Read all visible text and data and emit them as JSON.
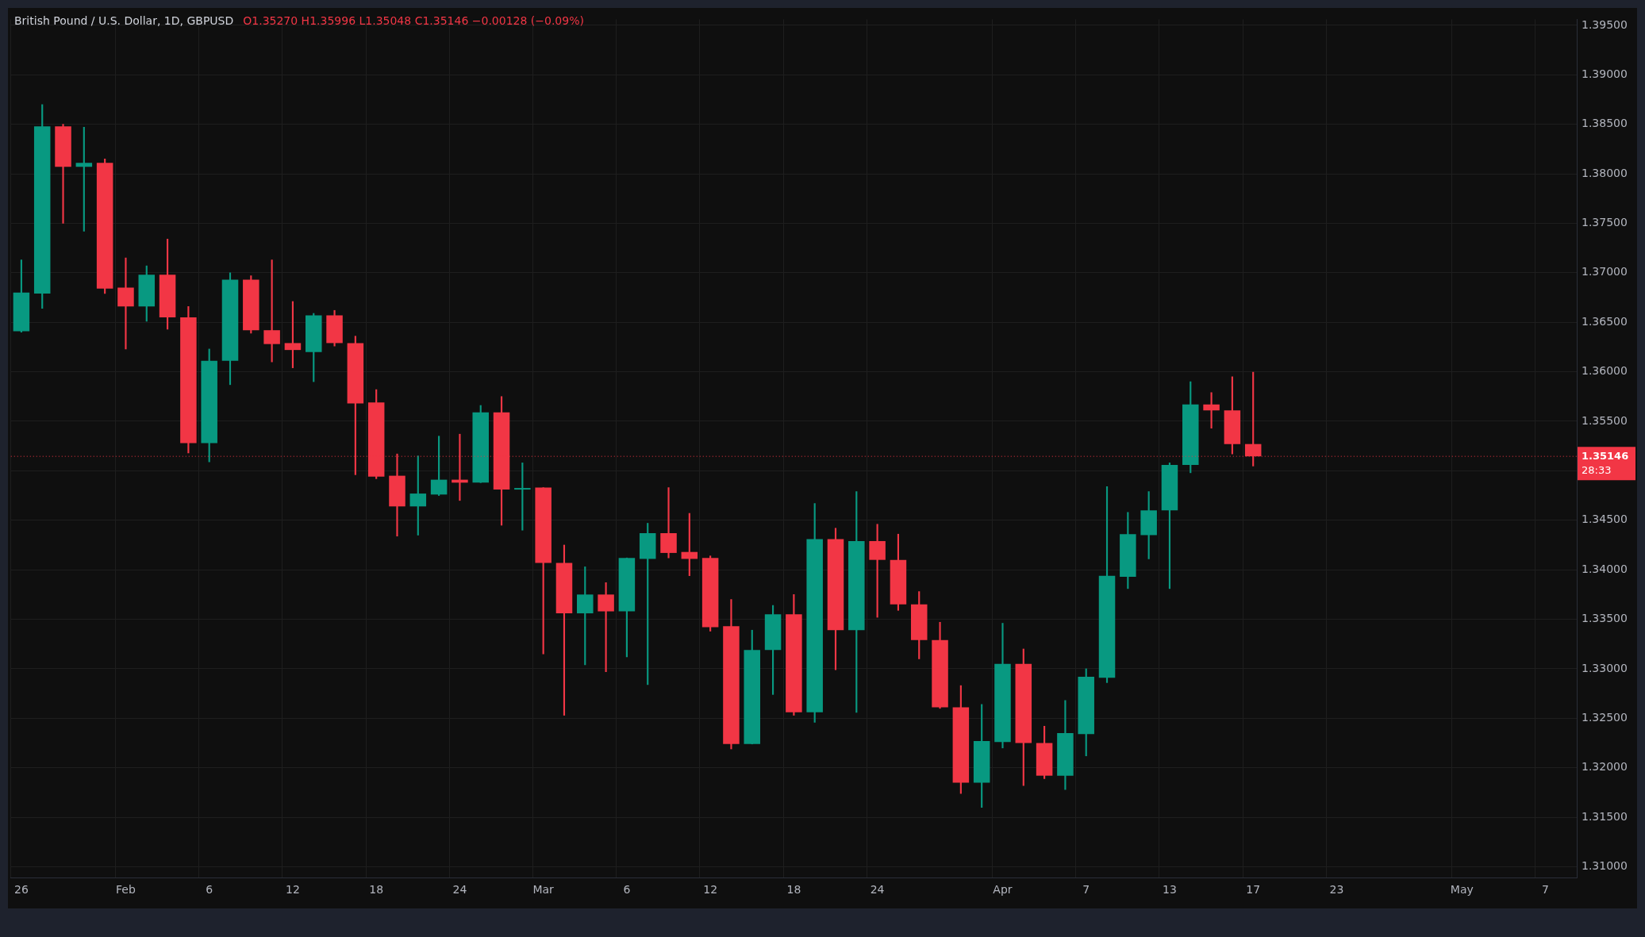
{
  "chart_data": {
    "type": "candlestick",
    "title": "British Pound / U.S. Dollar, 1D, GBPUSD",
    "subtitle": "O1.35270 H1.35996 L1.35048 C1.35146 −0.00128 (−0.09%)",
    "categories": [
      "26",
      null,
      null,
      null,
      null,
      "Feb",
      null,
      null,
      null,
      "6",
      null,
      null,
      null,
      "12",
      null,
      null,
      null,
      "18",
      null,
      null,
      null,
      "24",
      null,
      null,
      null,
      "Mar",
      null,
      null,
      null,
      "6",
      null,
      null,
      null,
      "12",
      null,
      null,
      null,
      "18",
      null,
      null,
      null,
      "24",
      null,
      null,
      null,
      null,
      null,
      "Apr",
      null,
      null,
      null,
      "7",
      null,
      null,
      null,
      "13",
      null,
      null,
      null,
      "17",
      null,
      null,
      null,
      "23",
      null,
      null,
      null,
      null,
      null,
      "May",
      null,
      null,
      null,
      "7",
      null
    ],
    "ohlc": [
      [
        1.3641,
        1.3713,
        1.364,
        1.368
      ],
      [
        1.3679,
        1.387,
        1.3664,
        1.3848
      ],
      [
        1.3848,
        1.385,
        1.375,
        1.3807
      ],
      [
        1.3807,
        1.3847,
        1.3742,
        1.3811
      ],
      [
        1.3811,
        1.3815,
        1.3679,
        1.3684
      ],
      [
        1.3685,
        1.3715,
        1.3623,
        1.3666
      ],
      [
        1.3666,
        1.3707,
        1.3651,
        1.3698
      ],
      [
        1.3698,
        1.3734,
        1.3643,
        1.3655
      ],
      [
        1.3655,
        1.3666,
        1.3518,
        1.3528
      ],
      [
        1.3528,
        1.3623,
        1.3509,
        1.3611
      ],
      [
        1.3611,
        1.37,
        1.3587,
        1.3693
      ],
      [
        1.3693,
        1.3697,
        1.3639,
        1.3642
      ],
      [
        1.3642,
        1.3713,
        1.361,
        1.3628
      ],
      [
        1.3629,
        1.3671,
        1.3604,
        1.3622
      ],
      [
        1.362,
        1.3659,
        1.359,
        1.3657
      ],
      [
        1.3657,
        1.3662,
        1.3626,
        1.3629
      ],
      [
        1.3629,
        1.3636,
        1.3496,
        1.3568
      ],
      [
        1.3569,
        1.3582,
        1.3492,
        1.3494
      ],
      [
        1.3495,
        1.3517,
        1.3434,
        1.3464
      ],
      [
        1.3464,
        1.3515,
        1.3435,
        1.3477
      ],
      [
        1.3476,
        1.3535,
        1.3475,
        1.3491
      ],
      [
        1.3491,
        1.3537,
        1.347,
        1.3488
      ],
      [
        1.3488,
        1.3566,
        1.3488,
        1.3559
      ],
      [
        1.3559,
        1.3575,
        1.3445,
        1.3481
      ],
      [
        1.3481,
        1.3508,
        1.344,
        1.3482
      ],
      [
        1.3483,
        1.3483,
        1.3315,
        1.3407
      ],
      [
        1.3407,
        1.3425,
        1.3253,
        1.3356
      ],
      [
        1.3356,
        1.3403,
        1.3304,
        1.3375
      ],
      [
        1.3375,
        1.3387,
        1.3297,
        1.3358
      ],
      [
        1.3358,
        1.3412,
        1.3312,
        1.3412
      ],
      [
        1.3411,
        1.3447,
        1.3284,
        1.3437
      ],
      [
        1.3437,
        1.3483,
        1.3412,
        1.3417
      ],
      [
        1.3418,
        1.3457,
        1.3394,
        1.3411
      ],
      [
        1.3412,
        1.3414,
        1.3338,
        1.3342
      ],
      [
        1.3343,
        1.337,
        1.3219,
        1.3224
      ],
      [
        1.3224,
        1.3339,
        1.3224,
        1.3319
      ],
      [
        1.3319,
        1.3364,
        1.3274,
        1.3355
      ],
      [
        1.3355,
        1.3375,
        1.3253,
        1.3256
      ],
      [
        1.3256,
        1.3467,
        1.3246,
        1.3431
      ],
      [
        1.3431,
        1.3442,
        1.3299,
        1.3339
      ],
      [
        1.3339,
        1.3479,
        1.3256,
        1.3429
      ],
      [
        1.3429,
        1.3446,
        1.3352,
        1.341
      ],
      [
        1.341,
        1.3436,
        1.3359,
        1.3365
      ],
      [
        1.3365,
        1.3378,
        1.331,
        1.3329
      ],
      [
        1.3329,
        1.3347,
        1.326,
        1.3261
      ],
      [
        1.3261,
        1.3283,
        1.3174,
        1.3185
      ],
      [
        1.3185,
        1.3264,
        1.316,
        1.3227
      ],
      [
        1.3226,
        1.3346,
        1.322,
        1.3305
      ],
      [
        1.3305,
        1.332,
        1.3182,
        1.3225
      ],
      [
        1.3225,
        1.3242,
        1.3189,
        1.3192
      ],
      [
        1.3192,
        1.3268,
        1.3178,
        1.3235
      ],
      [
        1.3234,
        1.33,
        1.3212,
        1.3292
      ],
      [
        1.3291,
        1.3484,
        1.3286,
        1.3394
      ],
      [
        1.3393,
        1.3458,
        1.3381,
        1.3436
      ],
      [
        1.3435,
        1.3479,
        1.3411,
        1.346
      ],
      [
        1.346,
        1.3508,
        1.3381,
        1.3506
      ],
      [
        1.3506,
        1.359,
        1.3498,
        1.3567
      ],
      [
        1.3567,
        1.3579,
        1.3543,
        1.3561
      ],
      [
        1.3561,
        1.3595,
        1.3517,
        1.3527
      ],
      [
        1.3527,
        1.35996,
        1.35048,
        1.35146
      ],
      null,
      null,
      null,
      null,
      null,
      null,
      null,
      null,
      null,
      null,
      null,
      null,
      null,
      null,
      null
    ],
    "colors": [
      "#089981",
      "#089981",
      "#f23645",
      "#089981",
      "#f23645",
      "#f23645",
      "#089981",
      "#f23645",
      "#f23645",
      "#089981",
      "#089981",
      "#f23645",
      "#f23645",
      "#f23645",
      "#089981",
      "#f23645",
      "#f23645",
      "#f23645",
      "#f23645",
      "#089981",
      "#089981",
      "#f23645",
      "#089981",
      "#f23645",
      "#089981",
      "#f23645",
      "#f23645",
      "#089981",
      "#f23645",
      "#089981",
      "#089981",
      "#f23645",
      "#f23645",
      "#f23645",
      "#f23645",
      "#089981",
      "#089981",
      "#f23645",
      "#089981",
      "#f23645",
      "#089981",
      "#f23645",
      "#f23645",
      "#f23645",
      "#f23645",
      "#f23645",
      "#089981",
      "#089981",
      "#f23645",
      "#f23645",
      "#089981",
      "#089981",
      "#089981",
      "#089981",
      "#089981",
      "#089981",
      "#089981",
      "#f23645",
      "#f23645",
      "#f23645",
      null,
      null,
      null,
      null,
      null,
      null,
      null,
      null,
      null,
      null,
      null,
      null,
      null,
      null,
      null
    ],
    "ylim": [
      1.3089,
      1.3956
    ],
    "yticks": [
      {
        "value": 1.31,
        "label": "1.31000"
      },
      {
        "value": 1.315,
        "label": "1.31500"
      },
      {
        "value": 1.32,
        "label": "1.32000"
      },
      {
        "value": 1.325,
        "label": "1.32500"
      },
      {
        "value": 1.33,
        "label": "1.33000"
      },
      {
        "value": 1.335,
        "label": "1.33500"
      },
      {
        "value": 1.34,
        "label": "1.34000"
      },
      {
        "value": 1.345,
        "label": "1.34500"
      },
      {
        "value": 1.35,
        "label": null
      },
      {
        "value": 1.355,
        "label": "1.35500"
      },
      {
        "value": 1.36,
        "label": "1.36000"
      },
      {
        "value": 1.365,
        "label": "1.36500"
      },
      {
        "value": 1.37,
        "label": "1.37000"
      },
      {
        "value": 1.375,
        "label": "1.37500"
      },
      {
        "value": 1.38,
        "label": "1.38000"
      },
      {
        "value": 1.385,
        "label": "1.38500"
      },
      {
        "value": 1.39,
        "label": "1.39000"
      },
      {
        "value": 1.395,
        "label": "1.39500"
      }
    ],
    "grid": true,
    "ref_lines": [
      {
        "axis": "y",
        "value": 1.35146,
        "label": "1.35146",
        "color": "#f23645",
        "line_style": "dotted"
      }
    ],
    "annotations": [
      "28:33"
    ]
  }
}
